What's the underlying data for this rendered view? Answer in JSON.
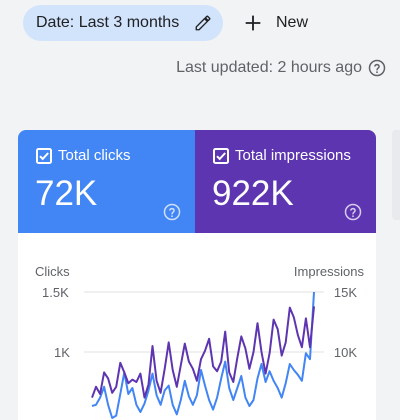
{
  "toolbar": {
    "date_chip": "Date: Last 3 months",
    "new_label": "New"
  },
  "status": {
    "last_updated": "Last updated: 2 hours ago"
  },
  "metrics": [
    {
      "label": "Total clicks",
      "value": "72K",
      "color": "#4285f4",
      "checked": true
    },
    {
      "label": "Total impressions",
      "value": "922K",
      "color": "#5e35b1",
      "checked": true
    }
  ],
  "chart_data": {
    "type": "line",
    "left_axis": {
      "title": "Clicks",
      "ticks": [
        "1.5K",
        "1K"
      ],
      "tick_values": [
        1500,
        1000
      ]
    },
    "right_axis": {
      "title": "Impressions",
      "ticks": [
        "15K",
        "10K"
      ],
      "tick_values": [
        15000,
        10000
      ]
    },
    "grid": true,
    "series": [
      {
        "axis": "left",
        "color": "#4285f4",
        "values": [
          550,
          560,
          620,
          710,
          560,
          450,
          470,
          650,
          830,
          650,
          700,
          560,
          500,
          570,
          680,
          820,
          640,
          560,
          680,
          720,
          560,
          480,
          600,
          760,
          630,
          560,
          640,
          850,
          720,
          600,
          520,
          620,
          780,
          920,
          700,
          600,
          700,
          800,
          620,
          550,
          600,
          780,
          900,
          750,
          840,
          760,
          700,
          620,
          740,
          900,
          850,
          810,
          760,
          990,
          940,
          1500
        ]
      },
      {
        "axis": "right",
        "color": "#5e35b1",
        "values": [
          6200,
          7100,
          6500,
          8300,
          7800,
          6600,
          7100,
          9100,
          8300,
          7400,
          7700,
          7500,
          8200,
          6200,
          7300,
          10500,
          7600,
          6600,
          8600,
          10800,
          8500,
          7100,
          8900,
          10700,
          9200,
          8600,
          7600,
          9400,
          10100,
          11100,
          8800,
          8400,
          9200,
          11700,
          8300,
          7500,
          9500,
          11300,
          10300,
          8600,
          10000,
          12400,
          10000,
          8200,
          9900,
          12700,
          11900,
          9700,
          10800,
          13700,
          12900,
          11400,
          10400,
          12800,
          10400,
          13800
        ]
      }
    ]
  }
}
